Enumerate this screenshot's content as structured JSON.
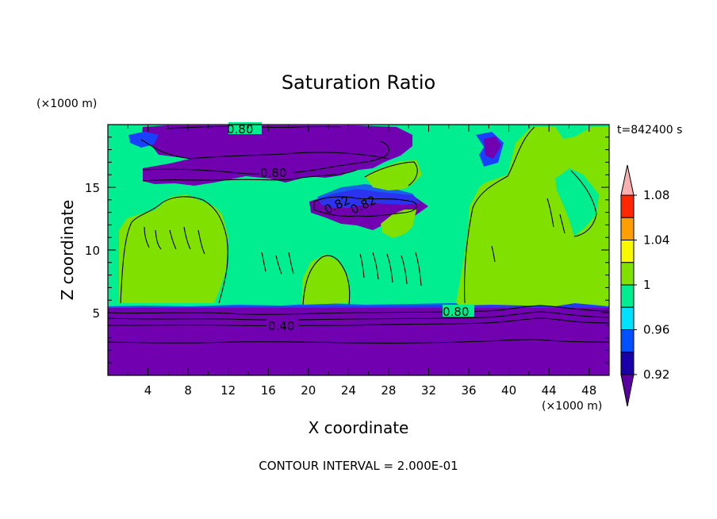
{
  "chart_data": {
    "type": "heatmap",
    "title": "Saturation Ratio",
    "xlabel": "X coordinate",
    "ylabel": "Z coordinate",
    "x_unit": "(×1000 m)",
    "y_unit": "(×1000 m)",
    "time_label": "t=842400 s",
    "footer": "CONTOUR INTERVAL = 2.000E-01",
    "xlim": [
      0,
      50
    ],
    "ylim": [
      0,
      20
    ],
    "xticks": [
      "4",
      "8",
      "12",
      "16",
      "20",
      "24",
      "28",
      "32",
      "36",
      "40",
      "44",
      "48"
    ],
    "yticks": [
      "5",
      "10",
      "15"
    ],
    "colorbar": {
      "labels": [
        "1.08",
        "1.04",
        "1",
        "0.96",
        "0.92"
      ],
      "colors": [
        "#5a00a0",
        "#1a00a8",
        "#0050ff",
        "#00e0ff",
        "#00ee90",
        "#80e000",
        "#f8f800",
        "#ffa000",
        "#ff2800",
        "#f8b0b0"
      ],
      "level_edges": [
        0.9,
        0.92,
        0.94,
        0.96,
        0.98,
        1.0,
        1.02,
        1.04,
        1.06,
        1.08,
        1.1
      ]
    },
    "contour_labels": [
      "0.80",
      "0.80",
      "0.80",
      "0.40",
      "0.82",
      "0.82"
    ],
    "regions": {
      "background": "#00ee90",
      "subsaturated": "#7000b0",
      "supersaturated": "#80e000",
      "mid_blue": "#1a40ff",
      "cyan": "#00e0ff"
    }
  }
}
